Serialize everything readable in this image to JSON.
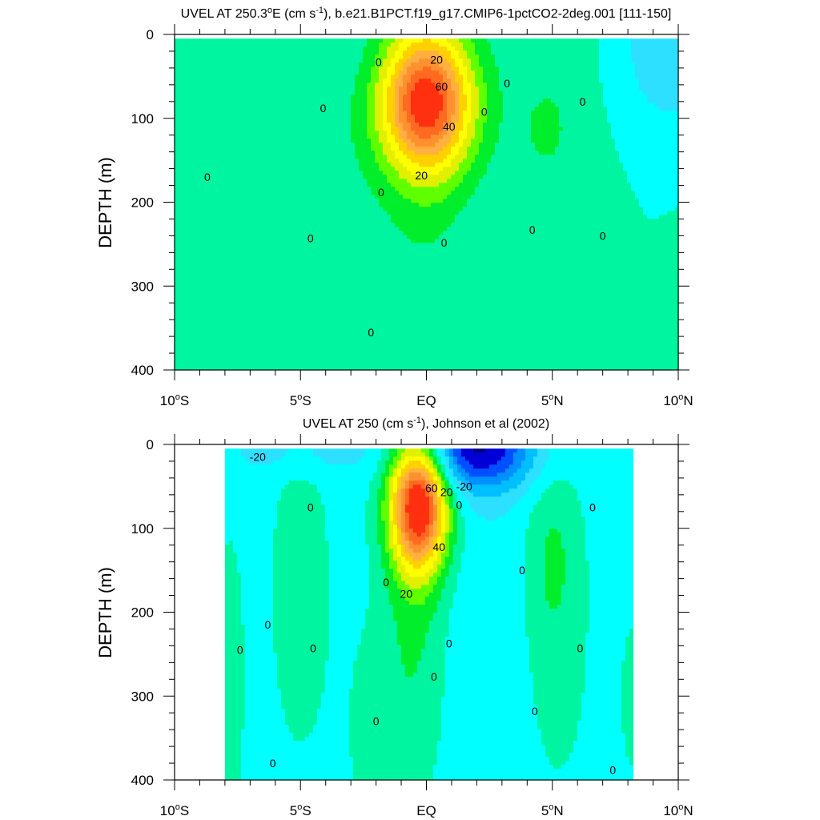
{
  "chart_data": [
    {
      "type": "heatmap",
      "title_main": "UVEL AT 250.3",
      "title_deg": "o",
      "title_mid": "E (cm s",
      "title_sup": "-1",
      "title_tail": "), b.e21.B1PCT.f19_g17.CMIP6-1pctCO2-2deg.001 [111-150]",
      "ylabel": "DEPTH (m)",
      "xlim": [
        -10,
        10
      ],
      "ylim": [
        400,
        0
      ],
      "x_ticks": [
        {
          "v": -10,
          "n": "10",
          "s": "o",
          "h": "S"
        },
        {
          "v": -5,
          "n": "5",
          "s": "o",
          "h": "S"
        },
        {
          "v": 0,
          "n": "EQ",
          "s": "",
          "h": ""
        },
        {
          "v": 5,
          "n": "5",
          "s": "o",
          "h": "N"
        },
        {
          "v": 10,
          "n": "10",
          "s": "o",
          "h": "N"
        }
      ],
      "y_ticks": [
        0,
        100,
        200,
        300,
        400
      ],
      "data_x": [
        -10,
        10
      ],
      "data_y": [
        5,
        400
      ],
      "background_level": 0,
      "features": [
        {
          "x": 0,
          "y": 80,
          "sx": 1.3,
          "sy": 60,
          "amp": 92
        },
        {
          "x": 0,
          "y": 130,
          "sx": 1.2,
          "sy": 200,
          "amp": 8
        },
        {
          "x": -6,
          "y": 220,
          "sx": 3.5,
          "sy": 260,
          "amp": 7
        },
        {
          "x": 5.1,
          "y": 120,
          "sx": 1.6,
          "sy": 300,
          "amp": 7
        },
        {
          "x": 4.7,
          "y": 110,
          "sx": 0.7,
          "sy": 35,
          "amp": 5
        },
        {
          "x": 9.6,
          "y": 10,
          "sx": 1.6,
          "sy": 80,
          "amp": -17
        },
        {
          "x": 10,
          "y": 350,
          "sx": 0.5,
          "sy": 70,
          "amp": 6
        },
        {
          "x": -10,
          "y": 50,
          "sx": 0.4,
          "sy": 20,
          "amp": 6
        },
        {
          "x": -3,
          "y": 30,
          "sx": 3,
          "sy": 40,
          "amp": -3
        }
      ],
      "contour_labels": [
        {
          "t": "0",
          "x": -1.9,
          "y": 33
        },
        {
          "t": "20",
          "x": 0.4,
          "y": 30
        },
        {
          "t": "60",
          "x": 0.6,
          "y": 62
        },
        {
          "t": "40",
          "x": 0.9,
          "y": 110
        },
        {
          "t": "20",
          "x": -0.2,
          "y": 168
        },
        {
          "t": "0",
          "x": -4.1,
          "y": 88
        },
        {
          "t": "0",
          "x": -8.7,
          "y": 170
        },
        {
          "t": "0",
          "x": 3.2,
          "y": 58
        },
        {
          "t": "0",
          "x": 6.2,
          "y": 80
        },
        {
          "t": "0",
          "x": 2.3,
          "y": 92
        },
        {
          "t": "0",
          "x": -1.8,
          "y": 188
        },
        {
          "t": "0",
          "x": -4.6,
          "y": 243
        },
        {
          "t": "0",
          "x": 0.7,
          "y": 248
        },
        {
          "t": "0",
          "x": 4.2,
          "y": 233
        },
        {
          "t": "0",
          "x": 7,
          "y": 240
        },
        {
          "t": "0",
          "x": -2.2,
          "y": 355
        }
      ]
    },
    {
      "type": "heatmap",
      "title_main": "UVEL AT 250 (cm s",
      "title_deg": "",
      "title_mid": "",
      "title_sup": "-1",
      "title_tail": "), Johnson et al (2002)",
      "ylabel": "DEPTH (m)",
      "xlim": [
        -10,
        10
      ],
      "ylim": [
        400,
        0
      ],
      "x_ticks": [
        {
          "v": -10,
          "n": "10",
          "s": "o",
          "h": "S"
        },
        {
          "v": -5,
          "n": "5",
          "s": "o",
          "h": "S"
        },
        {
          "v": 0,
          "n": "EQ",
          "s": "",
          "h": ""
        },
        {
          "v": 5,
          "n": "5",
          "s": "o",
          "h": "N"
        },
        {
          "v": 10,
          "n": "10",
          "s": "o",
          "h": "N"
        }
      ],
      "y_ticks": [
        0,
        100,
        200,
        300,
        400
      ],
      "data_x": [
        -8,
        8.2
      ],
      "data_y": [
        5,
        400
      ],
      "background_level": -5,
      "features": [
        {
          "x": -0.3,
          "y": 72,
          "sx": 0.8,
          "sy": 55,
          "amp": 102
        },
        {
          "x": -0.5,
          "y": 200,
          "sx": 0.9,
          "sy": 160,
          "amp": 16
        },
        {
          "x": -5,
          "y": 175,
          "sx": 0.8,
          "sy": 130,
          "amp": 13
        },
        {
          "x": 5,
          "y": 130,
          "sx": 0.8,
          "sy": 85,
          "amp": 15
        },
        {
          "x": 5,
          "y": 300,
          "sx": 1.3,
          "sy": 130,
          "amp": 7
        },
        {
          "x": -7.8,
          "y": 280,
          "sx": 0.5,
          "sy": 150,
          "amp": 9
        },
        {
          "x": 2,
          "y": 5,
          "sx": 1.6,
          "sy": 35,
          "amp": -55
        },
        {
          "x": -5,
          "y": 10,
          "sx": 2.5,
          "sy": 20,
          "amp": -10
        },
        {
          "x": 3,
          "y": 230,
          "sx": 1.3,
          "sy": 200,
          "amp": -4
        },
        {
          "x": -2.2,
          "y": 340,
          "sx": 0.8,
          "sy": 100,
          "amp": 8
        },
        {
          "x": 8.2,
          "y": 300,
          "sx": 0.4,
          "sy": 80,
          "amp": 8
        }
      ],
      "contour_labels": [
        {
          "t": "-20",
          "x": -6.7,
          "y": 15
        },
        {
          "t": "60",
          "x": 0.2,
          "y": 52
        },
        {
          "t": "20",
          "x": 0.8,
          "y": 57
        },
        {
          "t": "-20",
          "x": 1.5,
          "y": 50
        },
        {
          "t": "0",
          "x": 1.3,
          "y": 72
        },
        {
          "t": "40",
          "x": 0.5,
          "y": 122
        },
        {
          "t": "20",
          "x": -0.8,
          "y": 178
        },
        {
          "t": "0",
          "x": -1.6,
          "y": 164
        },
        {
          "t": "0",
          "x": -4.6,
          "y": 75
        },
        {
          "t": "0",
          "x": 3.8,
          "y": 150
        },
        {
          "t": "0",
          "x": 6.6,
          "y": 75
        },
        {
          "t": "0",
          "x": -6.3,
          "y": 215
        },
        {
          "t": "0",
          "x": -4.5,
          "y": 243
        },
        {
          "t": "0",
          "x": -7.4,
          "y": 245
        },
        {
          "t": "0",
          "x": 0.9,
          "y": 237
        },
        {
          "t": "0",
          "x": 6.1,
          "y": 243
        },
        {
          "t": "0",
          "x": 0.3,
          "y": 277
        },
        {
          "t": "0",
          "x": 4.3,
          "y": 318
        },
        {
          "t": "0",
          "x": -2,
          "y": 330
        },
        {
          "t": "0",
          "x": -6.1,
          "y": 380
        },
        {
          "t": "0",
          "x": 7.4,
          "y": 388
        }
      ]
    }
  ],
  "colors": {
    "levels": [
      -60,
      -50,
      -40,
      -30,
      -20,
      -10,
      0,
      10,
      20,
      30,
      40,
      50,
      60,
      70,
      80,
      90
    ],
    "fills": [
      "#00007F",
      "#0000D6",
      "#0050FF",
      "#0090FF",
      "#00BFFF",
      "#2DE0FF",
      "#00FFFF",
      "#00F5A0",
      "#00EE2C",
      "#60FF00",
      "#E0F000",
      "#FFFF00",
      "#FFD000",
      "#FFB040",
      "#FF9030",
      "#FF6A20",
      "#FF3010",
      "#EE0000"
    ]
  }
}
